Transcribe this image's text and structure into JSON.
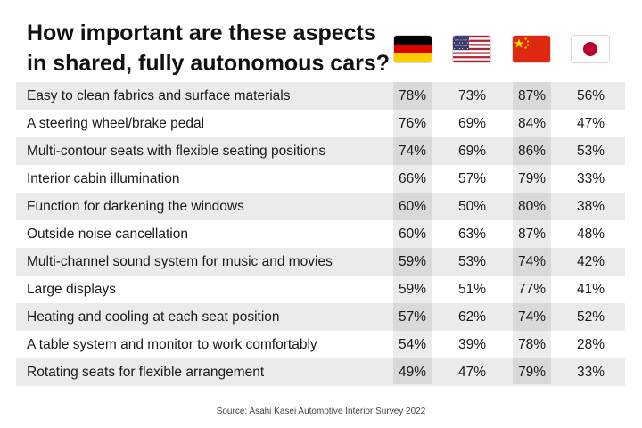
{
  "chart_data": {
    "type": "table",
    "title_lines": [
      "How important are these aspects",
      "in shared, fully autonomous cars?"
    ],
    "columns": [
      {
        "key": "de",
        "icon": "germany-flag-icon"
      },
      {
        "key": "us",
        "icon": "usa-flag-icon"
      },
      {
        "key": "cn",
        "icon": "china-flag-icon"
      },
      {
        "key": "jp",
        "icon": "japan-flag-icon"
      }
    ],
    "rows": [
      {
        "label": "Easy to clean fabrics and surface materials",
        "values": [
          "78%",
          "73%",
          "87%",
          "56%"
        ]
      },
      {
        "label": "A steering wheel/brake pedal",
        "values": [
          "76%",
          "69%",
          "84%",
          "47%"
        ]
      },
      {
        "label": "Multi-contour seats with flexible seating positions",
        "values": [
          "74%",
          "69%",
          "86%",
          "53%"
        ]
      },
      {
        "label": "Interior cabin illumination",
        "values": [
          "66%",
          "57%",
          "79%",
          "33%"
        ]
      },
      {
        "label": "Function for darkening the windows",
        "values": [
          "60%",
          "50%",
          "80%",
          "38%"
        ]
      },
      {
        "label": "Outside noise cancellation",
        "values": [
          "60%",
          "63%",
          "87%",
          "48%"
        ]
      },
      {
        "label": "Multi-channel sound system for music and movies",
        "values": [
          "59%",
          "53%",
          "74%",
          "42%"
        ]
      },
      {
        "label": "Large displays",
        "values": [
          "59%",
          "51%",
          "77%",
          "41%"
        ]
      },
      {
        "label": "Heating and cooling at each seat position",
        "values": [
          "57%",
          "62%",
          "74%",
          "52%"
        ]
      },
      {
        "label": "A table system and monitor to work comfortably",
        "values": [
          "54%",
          "39%",
          "78%",
          "28%"
        ]
      },
      {
        "label": "Rotating seats for flexible arrangement",
        "values": [
          "49%",
          "47%",
          "79%",
          "33%"
        ]
      }
    ],
    "source": "Source: Asahi Kasei Automotive Interior Survey 2022"
  },
  "colors": {
    "row_band": "#ebebeb",
    "germany": [
      "#000000",
      "#dd0000",
      "#ffce00"
    ],
    "usa": [
      "#b22234",
      "#ffffff",
      "#3c3b6e"
    ],
    "china": [
      "#de2910",
      "#ffde00"
    ],
    "japan": [
      "#ffffff",
      "#bc002d"
    ]
  }
}
